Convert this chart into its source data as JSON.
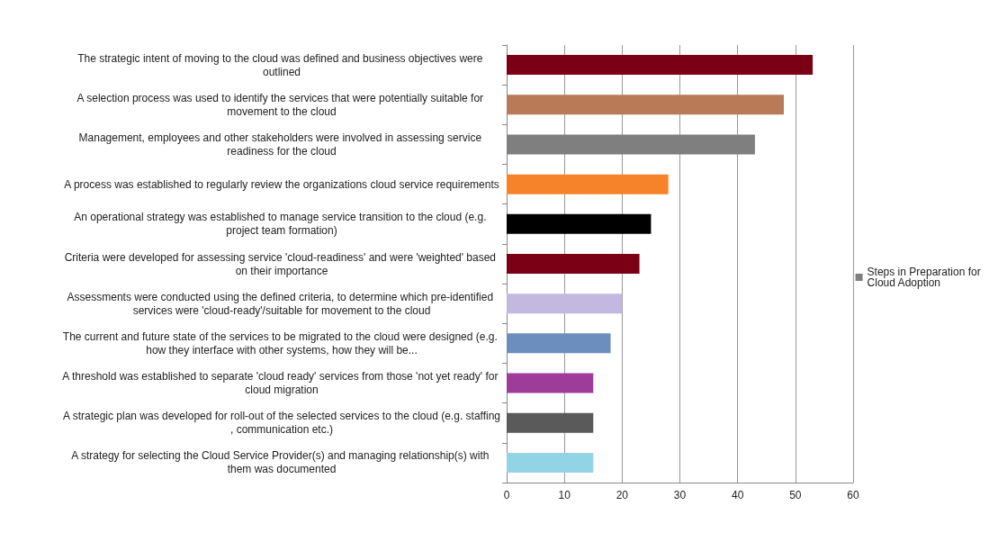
{
  "chart_data": {
    "type": "bar",
    "orientation": "horizontal",
    "categories": [
      "The strategic intent of moving to the cloud was defined and business objectives were outlined",
      "A selection process was used to identify the services that were potentially suitable for movement to the cloud",
      "Management, employees and other stakeholders were involved in assessing service readiness for the cloud",
      "A process was established to regularly review the organizations cloud service requirements",
      "An operational strategy was established to manage service transition to the cloud (e.g. project team formation)",
      "Criteria were developed for assessing service 'cloud-readiness' and were 'weighted' based on their importance",
      "Assessments were conducted using the defined criteria, to determine which pre-identified services were 'cloud-ready'/suitable for movement to the cloud",
      "The current and future state of the services to be migrated to the cloud were designed (e.g. how they interface with other systems, how they will be...",
      "A threshold was established to separate 'cloud ready' services from those 'not yet ready' for cloud migration",
      "A strategic plan was developed for roll-out of the selected services to the cloud (e.g. staffing, communication etc.)",
      "A strategy for selecting the Cloud Service Provider(s) and managing relationship(s) with them was documented"
    ],
    "series": [
      {
        "name": "Steps in Preparation for Cloud Adoption",
        "color": "#7f7f7f",
        "values": [
          53,
          48,
          43,
          28,
          25,
          23,
          20,
          18,
          15,
          15,
          15
        ],
        "colors": [
          "#7b0015",
          "#b97a57",
          "#7f7f7f",
          "#f6822a",
          "#000000",
          "#7b0015",
          "#c3b9e0",
          "#6c8ebf",
          "#9e3c9a",
          "#5a5a5a",
          "#93d3e6"
        ]
      }
    ],
    "xlim": [
      0,
      60
    ],
    "xticks": [
      0,
      10,
      20,
      30,
      40,
      50,
      60
    ],
    "grid": "x",
    "legend": "right"
  }
}
